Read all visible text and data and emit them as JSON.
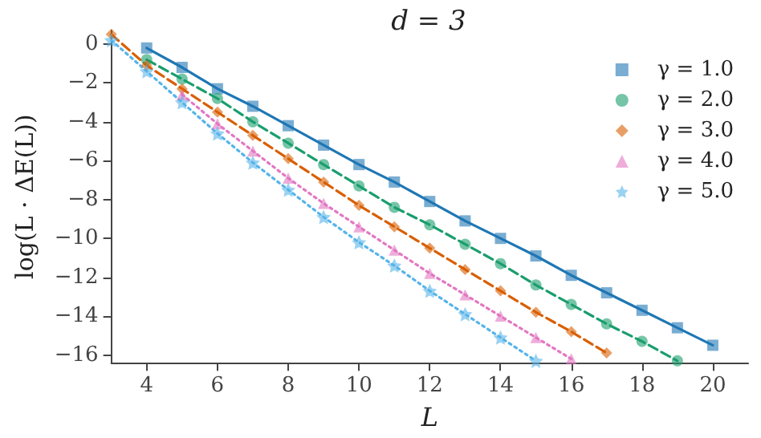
{
  "chart_data": {
    "type": "line",
    "title": "d = 3",
    "xlabel": "L",
    "ylabel": "log(L · ΔE(L))",
    "xlim": [
      3,
      21
    ],
    "ylim": [
      -16.4,
      0.7
    ],
    "xticks": [
      4,
      6,
      8,
      10,
      12,
      14,
      16,
      18,
      20
    ],
    "yticks": [
      -16,
      -14,
      -12,
      -10,
      -8,
      -6,
      -4,
      -2,
      0
    ],
    "grid": false,
    "legend": "top right",
    "series": [
      {
        "name": "γ = 1.0",
        "color": "#1f77b4",
        "marker": "square",
        "line_style": "solid",
        "x": [
          4,
          5,
          6,
          7,
          8,
          9,
          10,
          11,
          12,
          13,
          14,
          15,
          16,
          17,
          18,
          19,
          20
        ],
        "values": [
          -0.2,
          -1.2,
          -2.3,
          -3.2,
          -4.2,
          -5.2,
          -6.2,
          -7.1,
          -8.1,
          -9.1,
          -10.0,
          -10.9,
          -11.9,
          -12.8,
          -13.7,
          -14.6,
          -15.5
        ]
      },
      {
        "name": "γ = 2.0",
        "color": "#1a9e6e",
        "marker": "circle",
        "line_style": "dashed",
        "x": [
          4,
          5,
          6,
          7,
          8,
          9,
          10,
          11,
          12,
          13,
          14,
          15,
          16,
          17,
          18,
          19
        ],
        "values": [
          -0.8,
          -1.8,
          -2.8,
          -4.0,
          -5.1,
          -6.2,
          -7.3,
          -8.4,
          -9.3,
          -10.3,
          -11.3,
          -12.4,
          -13.4,
          -14.4,
          -15.3,
          -16.3
        ]
      },
      {
        "name": "γ = 3.0",
        "color": "#d95f02",
        "marker": "diamond",
        "line_style": "dashed",
        "x": [
          3,
          4,
          5,
          6,
          7,
          8,
          9,
          10,
          11,
          12,
          13,
          14,
          15,
          16,
          17
        ],
        "values": [
          0.5,
          -1.1,
          -2.3,
          -3.5,
          -4.7,
          -5.9,
          -7.1,
          -8.3,
          -9.4,
          -10.5,
          -11.6,
          -12.7,
          -13.8,
          -14.8,
          -15.9
        ]
      },
      {
        "name": "γ = 4.0",
        "color": "#e377c2",
        "marker": "triangle",
        "line_style": "dotted",
        "x": [
          5,
          6,
          7,
          8,
          9,
          10,
          11,
          12,
          13,
          14,
          15,
          16
        ],
        "values": [
          -2.6,
          -4.1,
          -5.5,
          -6.9,
          -8.2,
          -9.4,
          -10.6,
          -11.8,
          -12.9,
          -14.0,
          -15.1,
          -16.2
        ]
      },
      {
        "name": "γ = 5.0",
        "color": "#56b4e9",
        "marker": "star",
        "line_style": "dotted",
        "x": [
          3,
          4,
          5,
          6,
          7,
          8,
          9,
          10,
          11,
          12,
          13,
          14,
          15
        ],
        "values": [
          0.2,
          -1.4,
          -3.0,
          -4.6,
          -6.1,
          -7.5,
          -8.9,
          -10.2,
          -11.4,
          -12.7,
          -13.9,
          -15.1,
          -16.3
        ]
      }
    ]
  }
}
